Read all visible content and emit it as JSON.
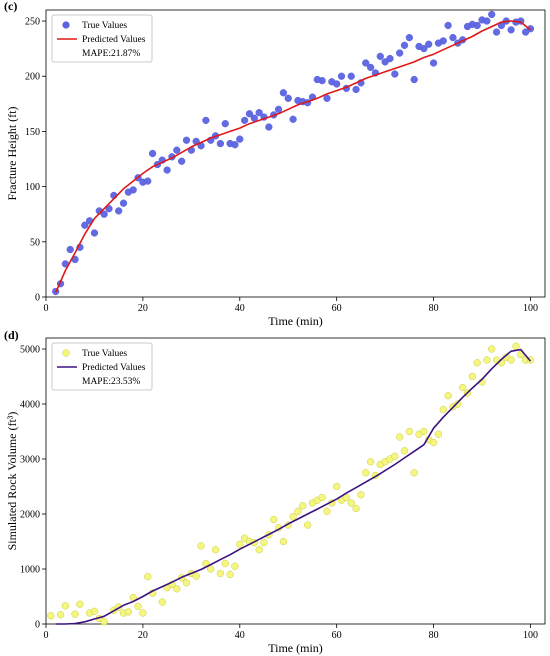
{
  "chart_data": [
    {
      "panel_label": "(c)",
      "type": "scatter",
      "xlabel": "Time (min)",
      "ylabel": "Fracture Height (ft)",
      "xlim": [
        0,
        103
      ],
      "ylim": [
        0,
        260
      ],
      "xticks": [
        0,
        20,
        40,
        60,
        80,
        100
      ],
      "yticks": [
        0,
        50,
        100,
        150,
        200,
        250
      ],
      "grid": false,
      "legend_position": "top-left",
      "legend": {
        "true_label": "True Values",
        "pred_label": "Predicted Values",
        "metric": "MAPE:21.87%"
      },
      "colors": {
        "true": "#5b63e0",
        "true_edge": "#5b63e0",
        "pred": "#e01818"
      },
      "series": [
        {
          "name": "True Values",
          "kind": "scatter",
          "x": [
            2,
            3,
            4,
            5,
            6,
            7,
            8,
            9,
            10,
            11,
            12,
            13,
            14,
            15,
            16,
            17,
            18,
            19,
            20,
            21,
            22,
            23,
            24,
            25,
            26,
            27,
            28,
            29,
            30,
            31,
            32,
            33,
            34,
            35,
            36,
            37,
            38,
            39,
            40,
            41,
            42,
            43,
            44,
            45,
            46,
            47,
            48,
            49,
            50,
            51,
            52,
            53,
            54,
            55,
            56,
            57,
            58,
            59,
            60,
            61,
            62,
            63,
            64,
            65,
            66,
            67,
            68,
            69,
            70,
            71,
            72,
            73,
            74,
            75,
            76,
            77,
            78,
            79,
            80,
            81,
            82,
            83,
            84,
            85,
            86,
            87,
            88,
            89,
            90,
            91,
            92,
            93,
            94,
            95,
            96,
            97,
            98,
            99,
            100
          ],
          "y": [
            5,
            12,
            30,
            43,
            34,
            45,
            65,
            69,
            58,
            78,
            75,
            80,
            92,
            78,
            85,
            95,
            97,
            108,
            104,
            105,
            130,
            120,
            124,
            115,
            127,
            133,
            123,
            142,
            133,
            141,
            137,
            160,
            142,
            146,
            139,
            157,
            139,
            138,
            143,
            160,
            166,
            162,
            167,
            163,
            154,
            165,
            170,
            185,
            180,
            161,
            178,
            177,
            176,
            181,
            197,
            196,
            180,
            195,
            193,
            200,
            189,
            200,
            188,
            194,
            212,
            208,
            203,
            218,
            213,
            216,
            202,
            221,
            228,
            235,
            197,
            227,
            225,
            229,
            212,
            230,
            232,
            246,
            235,
            230,
            233,
            245,
            247,
            246,
            251,
            250,
            256,
            240,
            246,
            250,
            242,
            249,
            250,
            240,
            243
          ]
        },
        {
          "name": "Predicted Values",
          "kind": "line",
          "x": [
            2,
            4,
            6,
            8,
            10,
            12,
            14,
            16,
            18,
            20,
            22,
            24,
            26,
            28,
            30,
            32,
            34,
            36,
            38,
            40,
            42,
            44,
            46,
            48,
            50,
            52,
            54,
            56,
            58,
            60,
            62,
            64,
            66,
            68,
            70,
            72,
            74,
            76,
            78,
            80,
            82,
            84,
            86,
            88,
            90,
            92,
            94,
            96,
            98,
            100
          ],
          "y": [
            4,
            24,
            40,
            57,
            71,
            80,
            89,
            98,
            105,
            112,
            118,
            122,
            126,
            131,
            136,
            140,
            144,
            147,
            150,
            153,
            157,
            160,
            163,
            166,
            170,
            174,
            177,
            180,
            184,
            187,
            190,
            194,
            198,
            201,
            204,
            207,
            210,
            213,
            217,
            220,
            224,
            228,
            232,
            236,
            241,
            245,
            249,
            250,
            249,
            242
          ]
        }
      ]
    },
    {
      "panel_label": "(d)",
      "type": "scatter",
      "xlabel": "Time (min)",
      "ylabel": "Simulated Rock Volume (ft³)",
      "xlim": [
        0,
        103
      ],
      "ylim": [
        0,
        5200
      ],
      "xticks": [
        0,
        20,
        40,
        60,
        80,
        100
      ],
      "yticks": [
        0,
        1000,
        2000,
        3000,
        4000,
        5000
      ],
      "grid": false,
      "legend_position": "top-left",
      "legend": {
        "true_label": "True Values",
        "pred_label": "Predicted Values",
        "metric": "MAPE:23.53%"
      },
      "colors": {
        "true": "#f4f67a",
        "true_edge": "#c9cc3a",
        "pred": "#3d1380"
      },
      "series": [
        {
          "name": "True Values",
          "kind": "scatter",
          "x": [
            1,
            3,
            4,
            6,
            7,
            9,
            10,
            11,
            12,
            14,
            15,
            16,
            17,
            18,
            19,
            20,
            21,
            22,
            24,
            25,
            26,
            27,
            28,
            29,
            30,
            31,
            32,
            33,
            34,
            35,
            36,
            37,
            38,
            39,
            40,
            41,
            42,
            43,
            44,
            45,
            46,
            47,
            48,
            49,
            50,
            51,
            52,
            53,
            54,
            55,
            56,
            57,
            58,
            59,
            60,
            61,
            62,
            63,
            64,
            65,
            66,
            67,
            68,
            69,
            70,
            71,
            72,
            73,
            74,
            75,
            76,
            77,
            78,
            79,
            80,
            81,
            82,
            83,
            84,
            85,
            86,
            87,
            88,
            89,
            90,
            91,
            92,
            93,
            94,
            95,
            96,
            97,
            98,
            99,
            100
          ],
          "y": [
            150,
            170,
            330,
            180,
            360,
            200,
            230,
            100,
            40,
            250,
            310,
            200,
            220,
            480,
            320,
            200,
            860,
            560,
            400,
            660,
            720,
            640,
            840,
            750,
            920,
            870,
            1420,
            1100,
            1000,
            1350,
            920,
            1100,
            900,
            1050,
            1450,
            1560,
            1500,
            1480,
            1350,
            1480,
            1620,
            1900,
            1750,
            1500,
            1800,
            1950,
            2050,
            2150,
            1800,
            2200,
            2250,
            2300,
            2050,
            2200,
            2500,
            2250,
            2300,
            2200,
            2100,
            2350,
            2750,
            2950,
            2700,
            2900,
            2950,
            3000,
            3050,
            3400,
            3150,
            3500,
            2750,
            3450,
            3500,
            3350,
            3300,
            3450,
            3900,
            4150,
            3950,
            4000,
            4300,
            4200,
            4500,
            4750,
            4400,
            4800,
            5000,
            4800,
            4750,
            4850,
            4800,
            5050,
            4900,
            4800,
            4800
          ]
        },
        {
          "name": "Predicted Values",
          "kind": "line",
          "x": [
            2,
            4,
            6,
            8,
            10,
            12,
            14,
            16,
            18,
            20,
            22,
            24,
            26,
            28,
            30,
            32,
            34,
            36,
            38,
            40,
            42,
            44,
            46,
            48,
            50,
            52,
            54,
            56,
            58,
            60,
            62,
            64,
            66,
            68,
            70,
            72,
            74,
            76,
            78,
            80,
            82,
            84,
            86,
            88,
            90,
            92,
            94,
            96,
            98,
            100
          ],
          "y": [
            0,
            0,
            10,
            40,
            90,
            140,
            240,
            340,
            410,
            500,
            600,
            680,
            760,
            850,
            920,
            990,
            1080,
            1170,
            1260,
            1360,
            1450,
            1540,
            1630,
            1720,
            1820,
            1910,
            2000,
            2090,
            2180,
            2270,
            2380,
            2480,
            2580,
            2680,
            2790,
            2900,
            3020,
            3140,
            3260,
            3560,
            3760,
            3940,
            4120,
            4290,
            4450,
            4640,
            4810,
            4960,
            4990,
            4780
          ]
        }
      ]
    }
  ]
}
